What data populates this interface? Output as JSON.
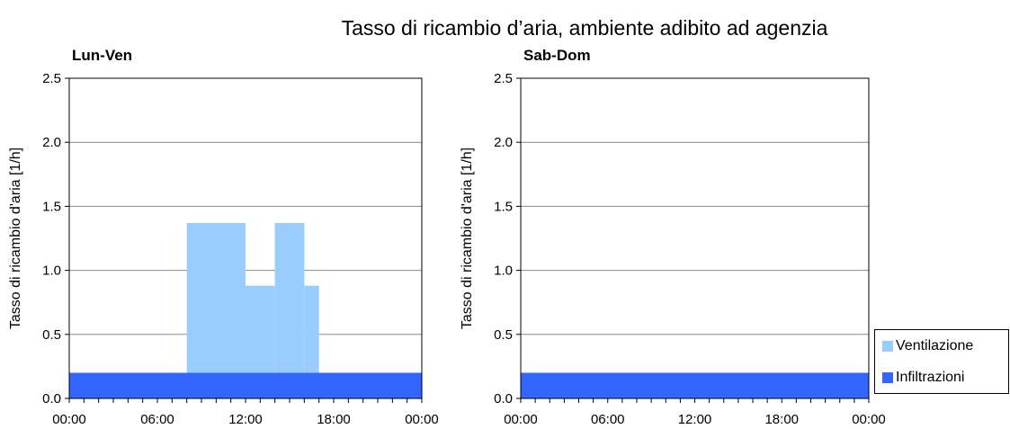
{
  "chart_data": {
    "type": "bar",
    "title": "Tasso di ricambio d’aria, ambiente adibito ad agenzia",
    "ylabel": "Tasso di ricambio d'aria [1/h]",
    "ylim": [
      0,
      2.5
    ],
    "yticks": [
      "0.0",
      "0.5",
      "1.0",
      "1.5",
      "2.0",
      "2.5"
    ],
    "xticks": [
      "00:00",
      "06:00",
      "12:00",
      "18:00",
      "00:00"
    ],
    "xlim_hours": [
      0,
      24
    ],
    "grid": true,
    "legend": "bottom-right",
    "stacked": true,
    "colors": {
      "Ventilazione": "#99ccff",
      "Infiltrazioni": "#3366ff"
    },
    "legend_entries": [
      "Ventilazione",
      "Infiltrazioni"
    ],
    "panels": [
      {
        "title": "Lun-Ven",
        "series": [
          {
            "name": "Infiltrazioni",
            "segments": [
              {
                "start": "00:00",
                "end": "24:00",
                "value": 0.2
              }
            ]
          },
          {
            "name": "Ventilazione",
            "segments": [
              {
                "start": "08:00",
                "end": "12:00",
                "value": 1.17
              },
              {
                "start": "12:00",
                "end": "14:00",
                "value": 0.68
              },
              {
                "start": "14:00",
                "end": "16:00",
                "value": 1.17
              },
              {
                "start": "16:00",
                "end": "17:00",
                "value": 0.68
              }
            ]
          }
        ]
      },
      {
        "title": "Sab-Dom",
        "series": [
          {
            "name": "Infiltrazioni",
            "segments": [
              {
                "start": "00:00",
                "end": "24:00",
                "value": 0.2
              }
            ]
          },
          {
            "name": "Ventilazione",
            "segments": []
          }
        ]
      }
    ]
  }
}
